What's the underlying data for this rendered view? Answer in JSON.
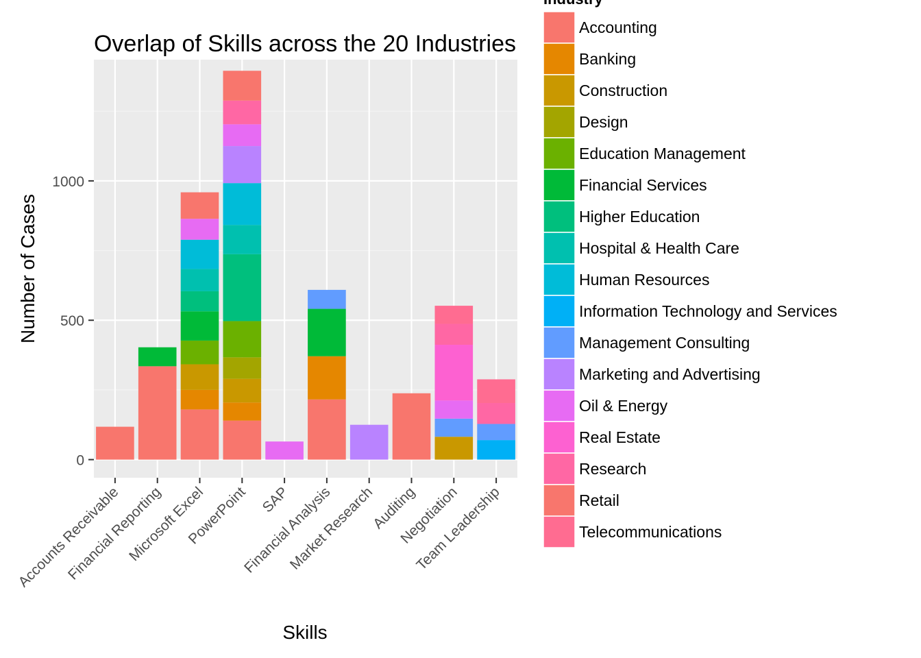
{
  "chart_data": {
    "type": "bar",
    "stacked": true,
    "title": "Overlap of Skills across the 20 Industries",
    "xlabel": "Skills",
    "ylabel": "Number of Cases",
    "ylim": [
      -65,
      1435
    ],
    "yticks": [
      0,
      500,
      1000
    ],
    "grid": true,
    "legend_title": "Industry",
    "legend_position": "right",
    "categories": [
      "Accounts Receivable",
      "Financial Reporting",
      "Microsoft Excel",
      "PowerPoint",
      "SAP",
      "Financial Analysis",
      "Market Research",
      "Auditing",
      "Negotiation",
      "Team Leadership"
    ],
    "series": [
      {
        "name": "Accounting",
        "color": "#F8766D",
        "values": [
          118,
          335,
          180,
          140,
          0,
          216,
          0,
          238,
          0,
          0
        ]
      },
      {
        "name": "Banking",
        "color": "#E58700",
        "values": [
          0,
          0,
          70,
          65,
          0,
          155,
          0,
          0,
          0,
          0
        ]
      },
      {
        "name": "Construction",
        "color": "#C99800",
        "values": [
          0,
          0,
          92,
          85,
          0,
          0,
          0,
          0,
          82,
          0
        ]
      },
      {
        "name": "Design",
        "color": "#A3A500",
        "values": [
          0,
          0,
          0,
          77,
          0,
          0,
          0,
          0,
          0,
          0
        ]
      },
      {
        "name": "Education Management",
        "color": "#6BB100",
        "values": [
          0,
          0,
          85,
          130,
          0,
          0,
          0,
          0,
          0,
          0
        ]
      },
      {
        "name": "Financial Services",
        "color": "#00BA38",
        "values": [
          0,
          68,
          105,
          0,
          0,
          170,
          0,
          0,
          0,
          0
        ]
      },
      {
        "name": "Higher Education",
        "color": "#00BF7D",
        "values": [
          0,
          0,
          72,
          240,
          0,
          0,
          0,
          0,
          0,
          0
        ]
      },
      {
        "name": "Hospital & Health Care",
        "color": "#00C0AF",
        "values": [
          0,
          0,
          80,
          105,
          0,
          0,
          0,
          0,
          0,
          0
        ]
      },
      {
        "name": "Human Resources",
        "color": "#00BCD8",
        "values": [
          0,
          0,
          105,
          150,
          0,
          0,
          0,
          0,
          0,
          0
        ]
      },
      {
        "name": "Information Technology and Services",
        "color": "#00B0F6",
        "values": [
          0,
          0,
          0,
          0,
          0,
          0,
          0,
          0,
          0,
          70
        ]
      },
      {
        "name": "Management Consulting",
        "color": "#619CFF",
        "values": [
          0,
          0,
          0,
          0,
          0,
          68,
          0,
          0,
          65,
          58
        ]
      },
      {
        "name": "Marketing and Advertising",
        "color": "#B983FF",
        "values": [
          0,
          0,
          0,
          133,
          0,
          0,
          125,
          0,
          0,
          0
        ]
      },
      {
        "name": "Oil & Energy",
        "color": "#E76BF3",
        "values": [
          0,
          0,
          75,
          78,
          65,
          0,
          0,
          0,
          65,
          0
        ]
      },
      {
        "name": "Real Estate",
        "color": "#FD61D1",
        "values": [
          0,
          0,
          0,
          0,
          0,
          0,
          0,
          0,
          200,
          0
        ]
      },
      {
        "name": "Research",
        "color": "#FF67A4",
        "values": [
          0,
          0,
          0,
          85,
          0,
          0,
          0,
          0,
          75,
          75
        ]
      },
      {
        "name": "Retail",
        "color": "#F8766D",
        "values": [
          0,
          0,
          95,
          107,
          0,
          0,
          0,
          0,
          0,
          0
        ]
      },
      {
        "name": "Telecommunications",
        "color": "#FF6C91",
        "values": [
          0,
          0,
          0,
          0,
          0,
          0,
          0,
          0,
          65,
          85
        ]
      }
    ]
  }
}
